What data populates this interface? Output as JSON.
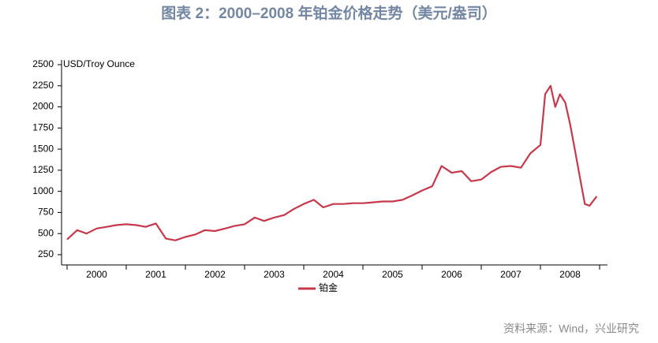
{
  "chart_data": {
    "type": "line",
    "title": "图表 2：2000–2008 年铂金价格走势（美元/盎司）",
    "y_label": "USD/Troy Ounce",
    "source": "资料来源：Wind，兴业研究",
    "x": [
      2000,
      2000.17,
      2000.33,
      2000.5,
      2000.67,
      2000.83,
      2001,
      2001.17,
      2001.33,
      2001.5,
      2001.67,
      2001.83,
      2002,
      2002.17,
      2002.33,
      2002.5,
      2002.67,
      2002.83,
      2003,
      2003.17,
      2003.33,
      2003.5,
      2003.67,
      2003.83,
      2004,
      2004.17,
      2004.33,
      2004.5,
      2004.67,
      2004.83,
      2005,
      2005.17,
      2005.33,
      2005.5,
      2005.67,
      2005.83,
      2006,
      2006.17,
      2006.33,
      2006.5,
      2006.67,
      2006.83,
      2007,
      2007.17,
      2007.33,
      2007.5,
      2007.67,
      2007.83,
      2008,
      2008.08,
      2008.17,
      2008.25,
      2008.33,
      2008.42,
      2008.5,
      2008.58,
      2008.67,
      2008.75,
      2008.83,
      2008.95
    ],
    "series": [
      {
        "name": "铂金",
        "color": "#c8384b",
        "values": [
          430,
          540,
          500,
          560,
          580,
          600,
          610,
          600,
          580,
          620,
          440,
          420,
          460,
          490,
          540,
          530,
          560,
          590,
          610,
          690,
          650,
          690,
          720,
          790,
          850,
          900,
          810,
          850,
          850,
          860,
          860,
          870,
          880,
          880,
          900,
          950,
          1010,
          1060,
          1300,
          1220,
          1240,
          1120,
          1140,
          1230,
          1290,
          1300,
          1280,
          1450,
          1550,
          2150,
          2250,
          2000,
          2150,
          2050,
          1800,
          1500,
          1150,
          850,
          830,
          940
        ]
      }
    ],
    "xlim": [
      2000,
      2009
    ],
    "xticks": [
      {
        "value": 2000,
        "label": "2000"
      },
      {
        "value": 2001,
        "label": "2001"
      },
      {
        "value": 2002,
        "label": "2002"
      },
      {
        "value": 2003,
        "label": "2003"
      },
      {
        "value": 2004,
        "label": "2004"
      },
      {
        "value": 2005,
        "label": "2005"
      },
      {
        "value": 2006,
        "label": "2006"
      },
      {
        "value": 2007,
        "label": "2007"
      },
      {
        "value": 2008,
        "label": "2008"
      }
    ],
    "ylim": [
      250,
      2500
    ],
    "yticks": [
      250,
      500,
      750,
      1000,
      1250,
      1500,
      1750,
      2000,
      2250,
      2500
    ],
    "grid": false,
    "legend": "bottom"
  }
}
